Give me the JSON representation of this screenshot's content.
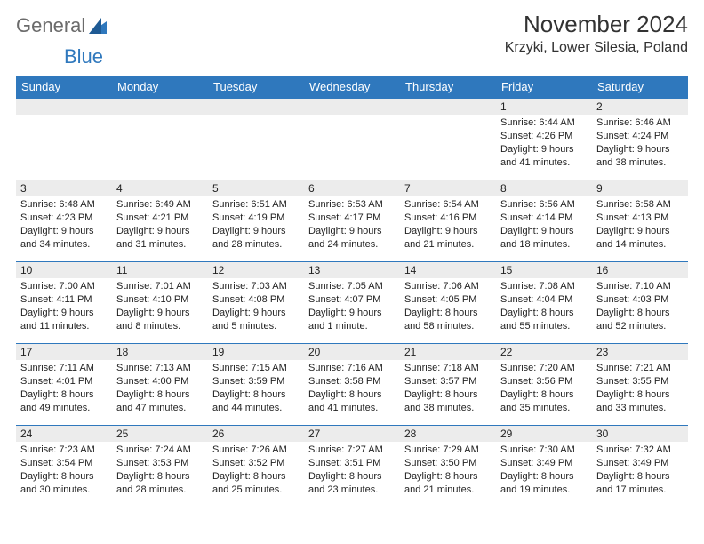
{
  "logo": {
    "general": "General",
    "blue": "Blue"
  },
  "title": "November 2024",
  "location": "Krzyki, Lower Silesia, Poland",
  "colors": {
    "header_bg": "#2f78bd",
    "header_text": "#ffffff",
    "daynum_bg": "#ececec",
    "text": "#222222",
    "border": "#2f78bd"
  },
  "typography": {
    "title_fontsize": 26,
    "location_fontsize": 16,
    "dayheader_fontsize": 13,
    "cell_fontsize": 11
  },
  "day_headers": [
    "Sunday",
    "Monday",
    "Tuesday",
    "Wednesday",
    "Thursday",
    "Friday",
    "Saturday"
  ],
  "weeks": [
    [
      null,
      null,
      null,
      null,
      null,
      {
        "n": "1",
        "sunrise": "Sunrise: 6:44 AM",
        "sunset": "Sunset: 4:26 PM",
        "daylight": "Daylight: 9 hours and 41 minutes."
      },
      {
        "n": "2",
        "sunrise": "Sunrise: 6:46 AM",
        "sunset": "Sunset: 4:24 PM",
        "daylight": "Daylight: 9 hours and 38 minutes."
      }
    ],
    [
      {
        "n": "3",
        "sunrise": "Sunrise: 6:48 AM",
        "sunset": "Sunset: 4:23 PM",
        "daylight": "Daylight: 9 hours and 34 minutes."
      },
      {
        "n": "4",
        "sunrise": "Sunrise: 6:49 AM",
        "sunset": "Sunset: 4:21 PM",
        "daylight": "Daylight: 9 hours and 31 minutes."
      },
      {
        "n": "5",
        "sunrise": "Sunrise: 6:51 AM",
        "sunset": "Sunset: 4:19 PM",
        "daylight": "Daylight: 9 hours and 28 minutes."
      },
      {
        "n": "6",
        "sunrise": "Sunrise: 6:53 AM",
        "sunset": "Sunset: 4:17 PM",
        "daylight": "Daylight: 9 hours and 24 minutes."
      },
      {
        "n": "7",
        "sunrise": "Sunrise: 6:54 AM",
        "sunset": "Sunset: 4:16 PM",
        "daylight": "Daylight: 9 hours and 21 minutes."
      },
      {
        "n": "8",
        "sunrise": "Sunrise: 6:56 AM",
        "sunset": "Sunset: 4:14 PM",
        "daylight": "Daylight: 9 hours and 18 minutes."
      },
      {
        "n": "9",
        "sunrise": "Sunrise: 6:58 AM",
        "sunset": "Sunset: 4:13 PM",
        "daylight": "Daylight: 9 hours and 14 minutes."
      }
    ],
    [
      {
        "n": "10",
        "sunrise": "Sunrise: 7:00 AM",
        "sunset": "Sunset: 4:11 PM",
        "daylight": "Daylight: 9 hours and 11 minutes."
      },
      {
        "n": "11",
        "sunrise": "Sunrise: 7:01 AM",
        "sunset": "Sunset: 4:10 PM",
        "daylight": "Daylight: 9 hours and 8 minutes."
      },
      {
        "n": "12",
        "sunrise": "Sunrise: 7:03 AM",
        "sunset": "Sunset: 4:08 PM",
        "daylight": "Daylight: 9 hours and 5 minutes."
      },
      {
        "n": "13",
        "sunrise": "Sunrise: 7:05 AM",
        "sunset": "Sunset: 4:07 PM",
        "daylight": "Daylight: 9 hours and 1 minute."
      },
      {
        "n": "14",
        "sunrise": "Sunrise: 7:06 AM",
        "sunset": "Sunset: 4:05 PM",
        "daylight": "Daylight: 8 hours and 58 minutes."
      },
      {
        "n": "15",
        "sunrise": "Sunrise: 7:08 AM",
        "sunset": "Sunset: 4:04 PM",
        "daylight": "Daylight: 8 hours and 55 minutes."
      },
      {
        "n": "16",
        "sunrise": "Sunrise: 7:10 AM",
        "sunset": "Sunset: 4:03 PM",
        "daylight": "Daylight: 8 hours and 52 minutes."
      }
    ],
    [
      {
        "n": "17",
        "sunrise": "Sunrise: 7:11 AM",
        "sunset": "Sunset: 4:01 PM",
        "daylight": "Daylight: 8 hours and 49 minutes."
      },
      {
        "n": "18",
        "sunrise": "Sunrise: 7:13 AM",
        "sunset": "Sunset: 4:00 PM",
        "daylight": "Daylight: 8 hours and 47 minutes."
      },
      {
        "n": "19",
        "sunrise": "Sunrise: 7:15 AM",
        "sunset": "Sunset: 3:59 PM",
        "daylight": "Daylight: 8 hours and 44 minutes."
      },
      {
        "n": "20",
        "sunrise": "Sunrise: 7:16 AM",
        "sunset": "Sunset: 3:58 PM",
        "daylight": "Daylight: 8 hours and 41 minutes."
      },
      {
        "n": "21",
        "sunrise": "Sunrise: 7:18 AM",
        "sunset": "Sunset: 3:57 PM",
        "daylight": "Daylight: 8 hours and 38 minutes."
      },
      {
        "n": "22",
        "sunrise": "Sunrise: 7:20 AM",
        "sunset": "Sunset: 3:56 PM",
        "daylight": "Daylight: 8 hours and 35 minutes."
      },
      {
        "n": "23",
        "sunrise": "Sunrise: 7:21 AM",
        "sunset": "Sunset: 3:55 PM",
        "daylight": "Daylight: 8 hours and 33 minutes."
      }
    ],
    [
      {
        "n": "24",
        "sunrise": "Sunrise: 7:23 AM",
        "sunset": "Sunset: 3:54 PM",
        "daylight": "Daylight: 8 hours and 30 minutes."
      },
      {
        "n": "25",
        "sunrise": "Sunrise: 7:24 AM",
        "sunset": "Sunset: 3:53 PM",
        "daylight": "Daylight: 8 hours and 28 minutes."
      },
      {
        "n": "26",
        "sunrise": "Sunrise: 7:26 AM",
        "sunset": "Sunset: 3:52 PM",
        "daylight": "Daylight: 8 hours and 25 minutes."
      },
      {
        "n": "27",
        "sunrise": "Sunrise: 7:27 AM",
        "sunset": "Sunset: 3:51 PM",
        "daylight": "Daylight: 8 hours and 23 minutes."
      },
      {
        "n": "28",
        "sunrise": "Sunrise: 7:29 AM",
        "sunset": "Sunset: 3:50 PM",
        "daylight": "Daylight: 8 hours and 21 minutes."
      },
      {
        "n": "29",
        "sunrise": "Sunrise: 7:30 AM",
        "sunset": "Sunset: 3:49 PM",
        "daylight": "Daylight: 8 hours and 19 minutes."
      },
      {
        "n": "30",
        "sunrise": "Sunrise: 7:32 AM",
        "sunset": "Sunset: 3:49 PM",
        "daylight": "Daylight: 8 hours and 17 minutes."
      }
    ]
  ]
}
